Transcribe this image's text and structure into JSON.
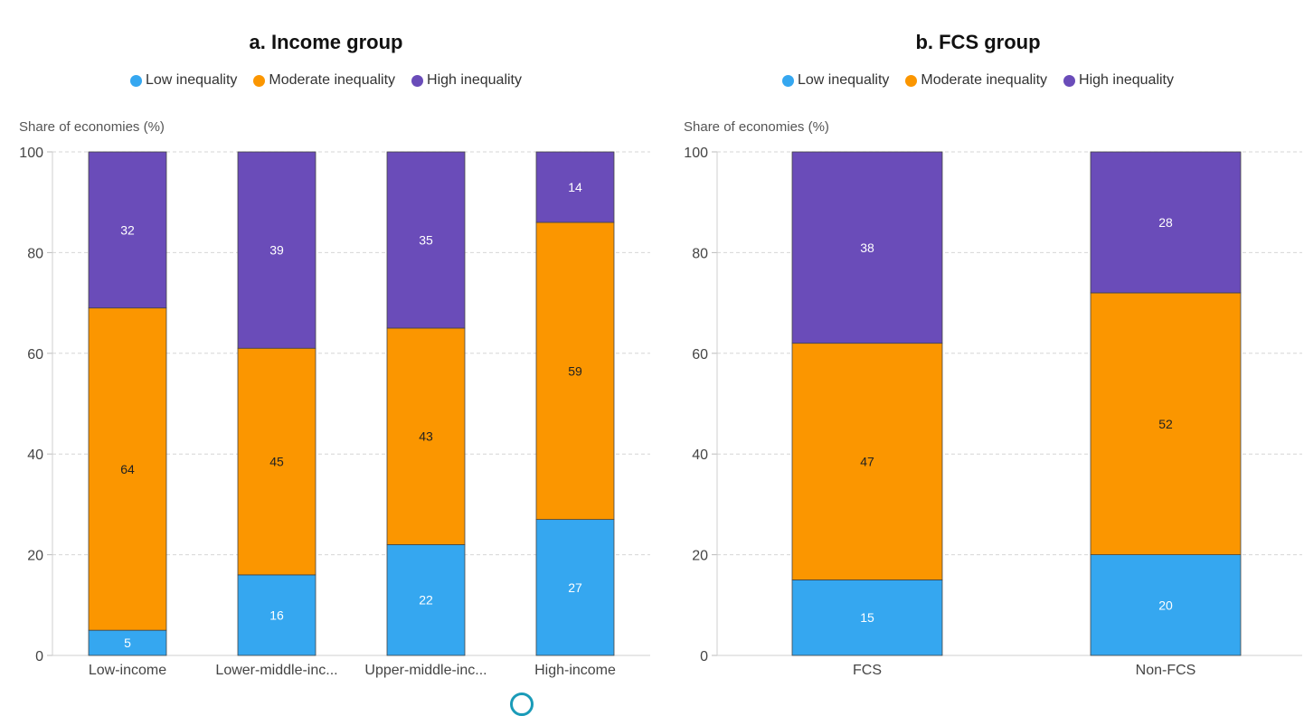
{
  "colors": {
    "low": "#35a7f0",
    "moderate": "#fb9600",
    "high": "#6a4cb9"
  },
  "chart_data": [
    {
      "type": "bar",
      "stacked": true,
      "title": "a. Income group",
      "ylabel": "Share of economies (%)",
      "xlabel": "",
      "ylim": [
        0,
        100
      ],
      "yticks": [
        0,
        20,
        40,
        60,
        80,
        100
      ],
      "grid": true,
      "legend_position": "top",
      "categories": [
        "Low-income",
        "Lower-middle-inc...",
        "Upper-middle-inc...",
        "High-income"
      ],
      "series": [
        {
          "name": "Low inequality",
          "color": "#35a7f0",
          "values": [
            5,
            16,
            22,
            27
          ]
        },
        {
          "name": "Moderate inequality",
          "color": "#fb9600",
          "values": [
            64,
            45,
            43,
            59
          ]
        },
        {
          "name": "High inequality",
          "color": "#6a4cb9",
          "values": [
            32,
            39,
            35,
            14
          ]
        }
      ]
    },
    {
      "type": "bar",
      "stacked": true,
      "title": "b. FCS group",
      "ylabel": "Share of economies (%)",
      "xlabel": "",
      "ylim": [
        0,
        100
      ],
      "yticks": [
        0,
        20,
        40,
        60,
        80,
        100
      ],
      "grid": true,
      "legend_position": "top",
      "categories": [
        "FCS",
        "Non-FCS"
      ],
      "series": [
        {
          "name": "Low inequality",
          "color": "#35a7f0",
          "values": [
            15,
            20
          ]
        },
        {
          "name": "Moderate inequality",
          "color": "#fb9600",
          "values": [
            47,
            52
          ]
        },
        {
          "name": "High inequality",
          "color": "#6a4cb9",
          "values": [
            38,
            28
          ]
        }
      ]
    }
  ]
}
